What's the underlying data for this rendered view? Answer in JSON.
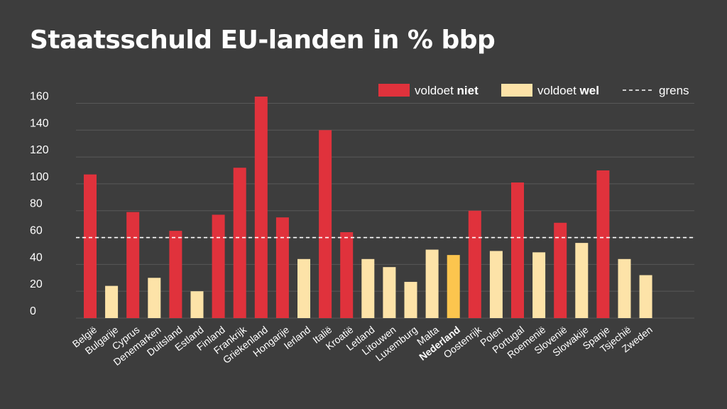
{
  "chart_data": {
    "type": "bar",
    "title": "Staatsschuld EU-landen in % bbp",
    "categories": [
      "België",
      "Bulgarije",
      "Cyprus",
      "Denemarken",
      "Duitsland",
      "Estland",
      "Finland",
      "Frankrijk",
      "Griekenland",
      "Hongarije",
      "Ierland",
      "Italië",
      "Kroatië",
      "Letland",
      "Litouwen",
      "Luxemburg",
      "Malta",
      "Nederland",
      "Oostenrijk",
      "Polen",
      "Portugal",
      "Roemenië",
      "Slovenië",
      "Slowakije",
      "Spanje",
      "Tsjechië",
      "Zweden"
    ],
    "values": [
      107,
      24,
      79,
      30,
      65,
      20,
      77,
      112,
      165,
      75,
      44,
      140,
      64,
      44,
      38,
      27,
      51,
      47,
      80,
      50,
      101,
      49,
      71,
      56,
      110,
      44,
      32
    ],
    "meets_threshold": [
      false,
      true,
      false,
      true,
      false,
      true,
      false,
      false,
      false,
      false,
      true,
      false,
      false,
      true,
      true,
      true,
      true,
      true,
      false,
      true,
      false,
      true,
      false,
      true,
      false,
      true,
      true
    ],
    "highlight": "Nederland",
    "threshold": 60,
    "ylim": [
      0,
      165
    ],
    "yticks": [
      0,
      20,
      40,
      60,
      80,
      100,
      120,
      140,
      160
    ],
    "grid": true,
    "legend_position": "top-right",
    "legend": [
      {
        "label_pre": "voldoet ",
        "label_bold": "niet",
        "kind": "bar",
        "color": "#e0323c"
      },
      {
        "label_pre": "voldoet ",
        "label_bold": "wel",
        "kind": "bar",
        "color": "#fde3a8"
      },
      {
        "label_pre": "grens",
        "label_bold": "",
        "kind": "dash",
        "color": "#ffffff"
      }
    ],
    "colors": {
      "fails": "#e0323c",
      "meets": "#fde3a8",
      "highlight": "#fcc54e",
      "background": "#3d3d3d",
      "grid": "#585858",
      "text": "#ffffff"
    }
  }
}
